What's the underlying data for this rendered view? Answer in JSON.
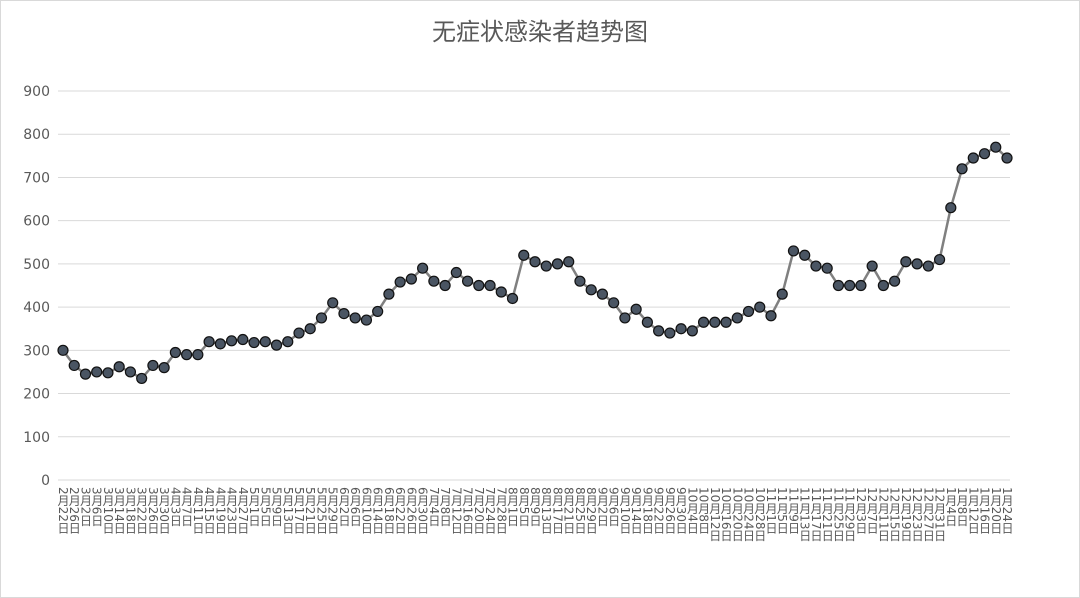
{
  "chart_data": {
    "type": "line",
    "title": "无症状感染者趋势图",
    "categories": [
      "2月22日",
      "2月26日",
      "3月2日",
      "3月6日",
      "3月10日",
      "3月14日",
      "3月18日",
      "3月22日",
      "3月26日",
      "3月30日",
      "4月3日",
      "4月7日",
      "4月11日",
      "4月15日",
      "4月19日",
      "4月23日",
      "4月27日",
      "5月1日",
      "5月5日",
      "5月9日",
      "5月13日",
      "5月17日",
      "5月21日",
      "5月25日",
      "5月29日",
      "6月2日",
      "6月6日",
      "6月10日",
      "6月14日",
      "6月18日",
      "6月22日",
      "6月26日",
      "6月30日",
      "7月4日",
      "7月8日",
      "7月12日",
      "7月16日",
      "7月20日",
      "7月24日",
      "7月28日",
      "8月1日",
      "8月5日",
      "8月9日",
      "8月13日",
      "8月17日",
      "8月21日",
      "8月25日",
      "8月29日",
      "9月2日",
      "9月6日",
      "9月10日",
      "9月14日",
      "9月18日",
      "9月22日",
      "9月26日",
      "9月30日",
      "10月4日",
      "10月8日",
      "10月12日",
      "10月16日",
      "10月20日",
      "10月24日",
      "10月28日",
      "11月1日",
      "11月5日",
      "11月9日",
      "11月13日",
      "11月17日",
      "11月21日",
      "11月25日",
      "11月29日",
      "12月3日",
      "12月7日",
      "12月11日",
      "12月15日",
      "12月19日",
      "12月23日",
      "12月27日",
      "12月31日",
      "1月4日",
      "1月8日",
      "1月12日",
      "1月16日",
      "1月20日",
      "1月24日"
    ],
    "series": [
      {
        "color": "#4a5563",
        "line_color": "#808080",
        "values": [
          300,
          265,
          245,
          250,
          248,
          262,
          250,
          235,
          265,
          260,
          295,
          290,
          290,
          320,
          315,
          322,
          325,
          318,
          320,
          312,
          320,
          340,
          350,
          375,
          410,
          385,
          375,
          370,
          390,
          430,
          458,
          465,
          490,
          460,
          450,
          480,
          460,
          450,
          450,
          435,
          420,
          520,
          505,
          495,
          500,
          505,
          460,
          440,
          430,
          410,
          375,
          395,
          365,
          345,
          340,
          350,
          345,
          365,
          365,
          365,
          375,
          390,
          400,
          380,
          430,
          530,
          520,
          495,
          490,
          450,
          450,
          450,
          495,
          450,
          460,
          505,
          500,
          495,
          510,
          630,
          720,
          745,
          755,
          770,
          745
        ]
      }
    ],
    "ylim": [
      0,
      900
    ],
    "yticks": [
      0,
      100,
      200,
      300,
      400,
      500,
      600,
      700,
      800,
      900
    ],
    "grid": true
  }
}
